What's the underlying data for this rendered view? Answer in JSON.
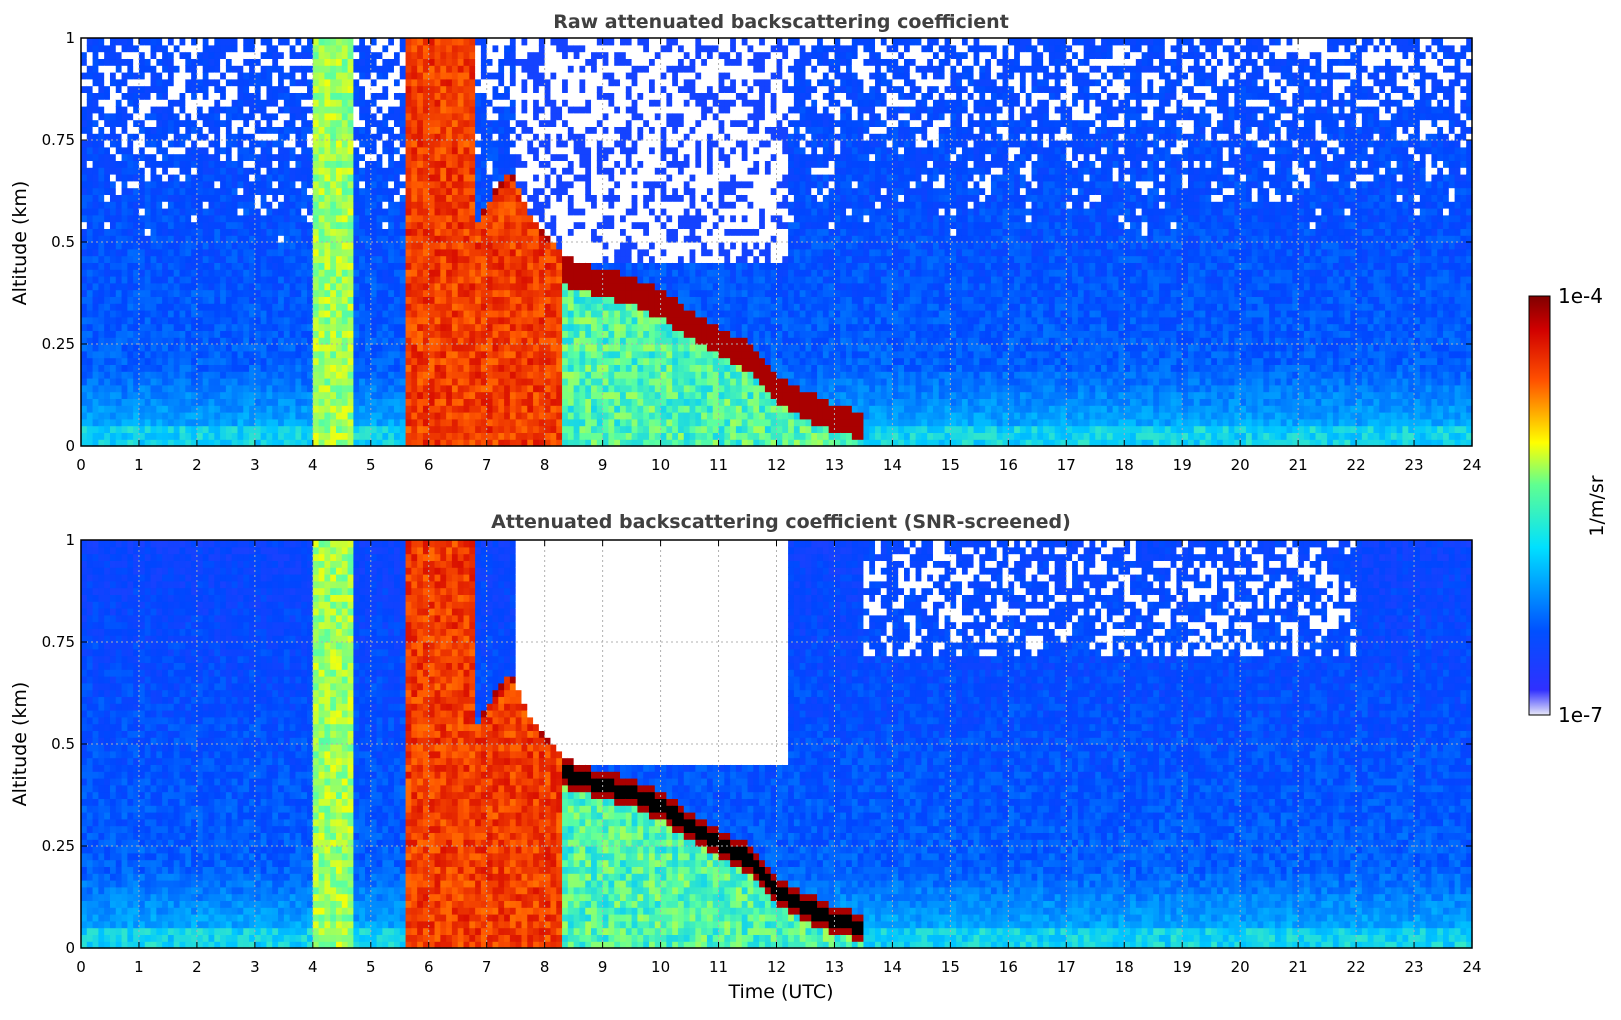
{
  "chart_data": [
    {
      "type": "heatmap",
      "title": "Raw attenuated backscattering coefficient",
      "xlabel": "",
      "ylabel": "Altitude (km)",
      "xlim": [
        0,
        24
      ],
      "ylim": [
        0,
        1
      ],
      "x_ticks": [
        "0",
        "1",
        "2",
        "3",
        "4",
        "5",
        "6",
        "7",
        "8",
        "9",
        "10",
        "11",
        "12",
        "13",
        "14",
        "15",
        "16",
        "17",
        "18",
        "19",
        "20",
        "21",
        "22",
        "23",
        "24"
      ],
      "y_ticks": [
        "0",
        "0.25",
        "0.5",
        "0.75",
        "1"
      ],
      "grid": true,
      "screened": false,
      "features": {
        "fog_bands": [
          {
            "t0": 4.0,
            "t1": 4.7,
            "level": 0.55
          },
          {
            "t0": 5.65,
            "t1": 8.25,
            "level": 0.82
          }
        ],
        "cloud_top_km": [
          {
            "t": 6.8,
            "h": 0.5
          },
          {
            "t": 7.1,
            "h": 0.58
          },
          {
            "t": 7.4,
            "h": 0.64
          },
          {
            "t": 7.7,
            "h": 0.55
          },
          {
            "t": 8.0,
            "h": 0.48
          },
          {
            "t": 8.5,
            "h": 0.42
          },
          {
            "t": 9.0,
            "h": 0.4
          },
          {
            "t": 9.5,
            "h": 0.38
          },
          {
            "t": 10.0,
            "h": 0.35
          },
          {
            "t": 10.5,
            "h": 0.3
          },
          {
            "t": 11.0,
            "h": 0.26
          },
          {
            "t": 11.5,
            "h": 0.22
          },
          {
            "t": 12.0,
            "h": 0.14
          },
          {
            "t": 12.5,
            "h": 0.1
          },
          {
            "t": 13.0,
            "h": 0.07
          },
          {
            "t": 13.5,
            "h": 0.05
          }
        ],
        "clear_region": {
          "t0": 7.5,
          "t1": 12.2,
          "above_km": 0.45
        }
      }
    },
    {
      "type": "heatmap",
      "title": "Attenuated backscattering coefficient (SNR-screened)",
      "xlabel": "Time (UTC)",
      "ylabel": "Altitude (km)",
      "xlim": [
        0,
        24
      ],
      "ylim": [
        0,
        1
      ],
      "x_ticks": [
        "0",
        "1",
        "2",
        "3",
        "4",
        "5",
        "6",
        "7",
        "8",
        "9",
        "10",
        "11",
        "12",
        "13",
        "14",
        "15",
        "16",
        "17",
        "18",
        "19",
        "20",
        "21",
        "22",
        "23",
        "24"
      ],
      "y_ticks": [
        "0",
        "0.25",
        "0.5",
        "0.75",
        "1"
      ],
      "grid": true,
      "screened": true,
      "features": {
        "fog_bands": [
          {
            "t0": 4.0,
            "t1": 4.7,
            "level": 0.55
          },
          {
            "t0": 5.65,
            "t1": 8.25,
            "level": 0.82
          }
        ],
        "cloud_top_km": [
          {
            "t": 6.8,
            "h": 0.5
          },
          {
            "t": 7.1,
            "h": 0.58
          },
          {
            "t": 7.4,
            "h": 0.64
          },
          {
            "t": 7.7,
            "h": 0.55
          },
          {
            "t": 8.0,
            "h": 0.48
          },
          {
            "t": 8.5,
            "h": 0.42
          },
          {
            "t": 9.0,
            "h": 0.4
          },
          {
            "t": 9.5,
            "h": 0.38
          },
          {
            "t": 10.0,
            "h": 0.35
          },
          {
            "t": 10.5,
            "h": 0.3
          },
          {
            "t": 11.0,
            "h": 0.26
          },
          {
            "t": 11.5,
            "h": 0.22
          },
          {
            "t": 12.0,
            "h": 0.14
          },
          {
            "t": 12.5,
            "h": 0.1
          },
          {
            "t": 13.0,
            "h": 0.07
          },
          {
            "t": 13.5,
            "h": 0.05
          }
        ],
        "clear_region": {
          "t0": 7.5,
          "t1": 12.2,
          "above_km": 0.45
        }
      }
    }
  ],
  "colorbar": {
    "label": "1/m/sr",
    "max_label": "1e-4",
    "min_label": "1e-7",
    "colormap": "jet",
    "colors": [
      "#e8e8f8",
      "#0000ff",
      "#00ffff",
      "#ffff00",
      "#ff0000",
      "#800000"
    ]
  },
  "colors": {
    "text": "#404040",
    "axis": "#000000",
    "grid": "#b0b0b0"
  }
}
